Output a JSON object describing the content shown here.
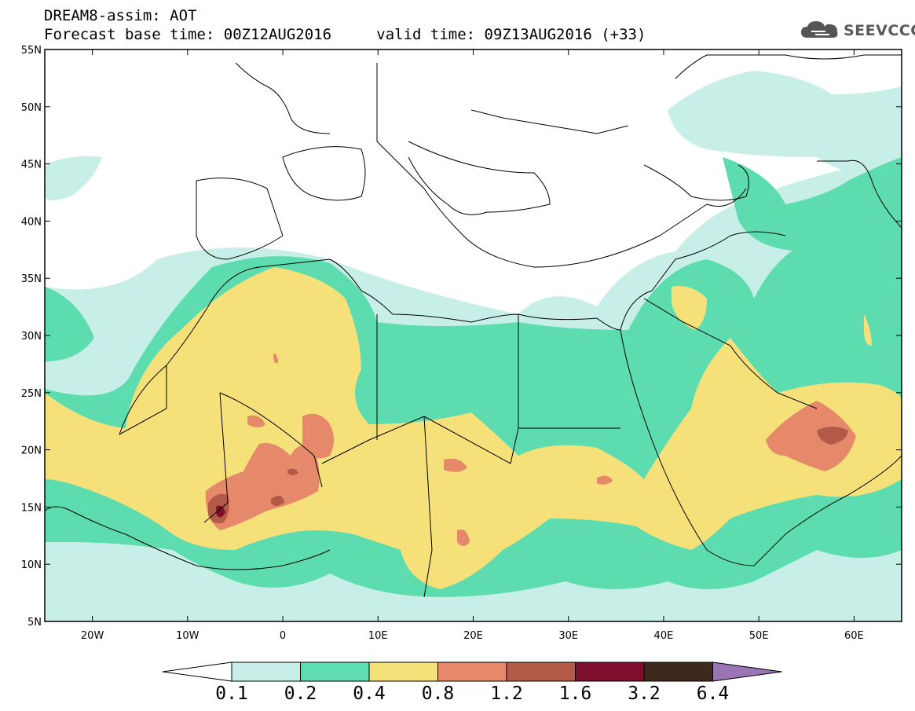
{
  "header": {
    "title": "DREAM8-assim: AOT",
    "base_time_label": "Forecast base time: 00Z12AUG2016",
    "valid_time_label": "valid time: 09Z13AUG2016 (+33)",
    "logo_text": "SEEVCCC"
  },
  "map": {
    "lon_range": [
      -25,
      65
    ],
    "lat_range": [
      5,
      55
    ],
    "lon_ticks": [
      "20W",
      "10W",
      "0",
      "10E",
      "20E",
      "30E",
      "40E",
      "50E",
      "60E"
    ],
    "lat_ticks": [
      "55N",
      "50N",
      "45N",
      "40N",
      "35N",
      "30N",
      "25N",
      "20N",
      "15N",
      "10N",
      "5N"
    ]
  },
  "colorbar": {
    "labels": [
      "0.1",
      "0.2",
      "0.4",
      "0.8",
      "1.2",
      "1.6",
      "3.2",
      "6.4"
    ],
    "colors": [
      "#c7efe8",
      "#5ddcb0",
      "#f5e07a",
      "#e5896a",
      "#b35a48",
      "#7d0f2c",
      "#3d2a1c",
      "#9b74b4"
    ],
    "under_color": "#ffffff"
  },
  "colors": {
    "level_0_1": "#c7efe8",
    "level_0_2": "#5ddcb0",
    "level_0_4": "#f5e07a",
    "level_0_8": "#e5896a",
    "level_1_2": "#b35a48",
    "level_1_6": "#7d0f2c"
  }
}
